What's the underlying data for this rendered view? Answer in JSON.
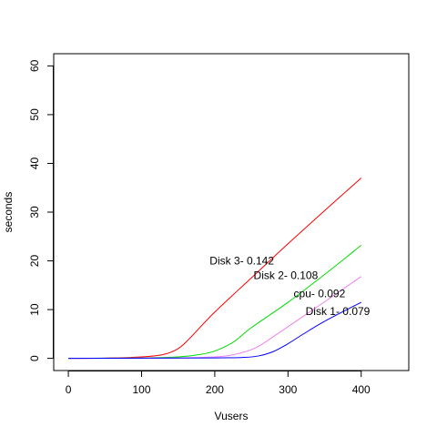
{
  "chart_data": {
    "type": "line",
    "xlabel": "Vusers",
    "ylabel": "seconds",
    "xlim": [
      -20,
      465
    ],
    "ylim": [
      -2.5,
      62.5
    ],
    "x_ticks": [
      0,
      100,
      200,
      300,
      400
    ],
    "y_ticks": [
      0,
      10,
      20,
      30,
      40,
      50,
      60
    ],
    "grid": false,
    "series": [
      {
        "color": "#ff0000",
        "points": [
          [
            0,
            0
          ],
          [
            50,
            0.05
          ],
          [
            100,
            0.3
          ],
          [
            130,
            0.8
          ],
          [
            150,
            2.0
          ],
          [
            165,
            4.0
          ],
          [
            200,
            9.5
          ],
          [
            250,
            16.5
          ],
          [
            300,
            23.5
          ],
          [
            350,
            30.3
          ],
          [
            400,
            37
          ]
        ]
      },
      {
        "color": "#00dd00",
        "points": [
          [
            0,
            0
          ],
          [
            100,
            0.1
          ],
          [
            150,
            0.3
          ],
          [
            180,
            0.8
          ],
          [
            200,
            1.5
          ],
          [
            225,
            3.3
          ],
          [
            250,
            6.3
          ],
          [
            300,
            11.5
          ],
          [
            350,
            17.2
          ],
          [
            400,
            23.2
          ]
        ]
      },
      {
        "color": "#ee82ee",
        "points": [
          [
            0,
            0
          ],
          [
            150,
            0.1
          ],
          [
            200,
            0.3
          ],
          [
            220,
            0.6
          ],
          [
            240,
            1.3
          ],
          [
            260,
            2.5
          ],
          [
            300,
            6.5
          ],
          [
            350,
            11.6
          ],
          [
            400,
            16.8
          ]
        ]
      },
      {
        "color": "#0000ff",
        "points": [
          [
            0,
            0
          ],
          [
            200,
            0.1
          ],
          [
            240,
            0.2
          ],
          [
            260,
            0.5
          ],
          [
            280,
            1.4
          ],
          [
            300,
            3.0
          ],
          [
            320,
            4.9
          ],
          [
            350,
            7.6
          ],
          [
            400,
            11.5
          ]
        ]
      }
    ],
    "annotations": [
      {
        "text": "Disk 3- 0.142",
        "x": 237,
        "y": 20
      },
      {
        "text": "Disk 2- 0.108",
        "x": 297,
        "y": 17
      },
      {
        "text": "cpu- 0.092",
        "x": 343,
        "y": 13.3
      },
      {
        "text": "Disk 1- 0.079",
        "x": 368,
        "y": 9.6
      }
    ]
  }
}
